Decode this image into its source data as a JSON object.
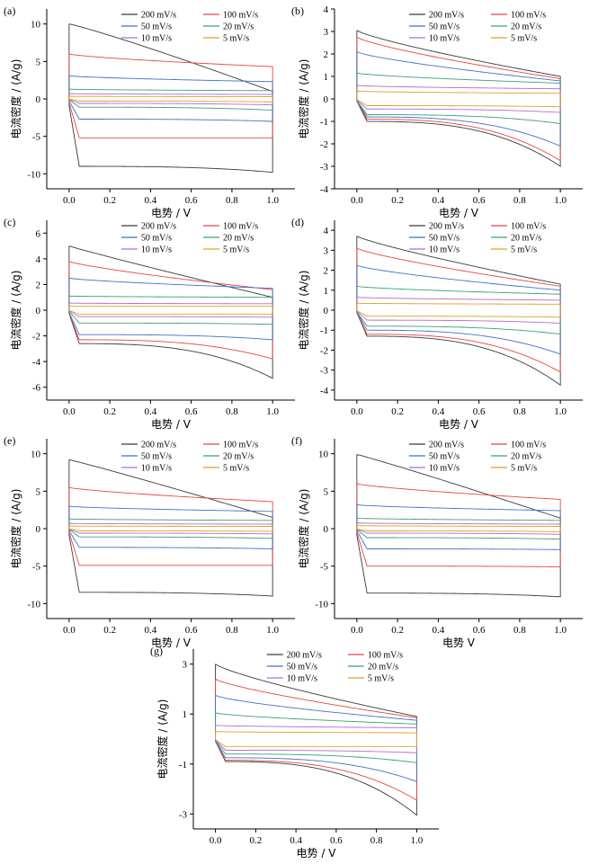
{
  "figure": {
    "legend_labels": [
      "200 mV/s",
      "100 mV/s",
      "50 mV/s",
      "20 mV/s",
      "10 mV/s",
      "5 mV/s"
    ],
    "colors": {
      "200 mV/s": "#3a3a3a",
      "100 mV/s": "#e8463c",
      "50 mV/s": "#3f72c8",
      "20 mV/s": "#3aa07a",
      "10 mV/s": "#b46ad6",
      "5 mV/s": "#e0a020"
    },
    "xlabel": "电势 / V",
    "ylabel": "电流密度 / (A/g)"
  },
  "chart_data": [
    {
      "panel": "(a)",
      "type": "line",
      "xlabel": "电势 / V",
      "ylabel": "电流密度 / (A/g)",
      "xlim": [
        0,
        1
      ],
      "ylim": [
        -12,
        12
      ],
      "xticks": [
        0.0,
        0.2,
        0.4,
        0.6,
        0.8,
        1.0
      ],
      "yticks": [
        10,
        5,
        0,
        -5,
        -10
      ],
      "series": [
        {
          "name": "200 mV/s",
          "y0": 10,
          "y1": -9.8,
          "a": -9,
          "b": 1.0,
          "shape": 1.2
        },
        {
          "name": "100 mV/s",
          "y0": 6,
          "y1": -5.2,
          "a": -5.2,
          "b": 4.3,
          "shape": 0.45
        },
        {
          "name": "50 mV/s",
          "y0": 3.1,
          "y1": -3,
          "a": -2.7,
          "b": 2.3,
          "shape": 0.3
        },
        {
          "name": "20 mV/s",
          "y0": 1.3,
          "y1": -1.5,
          "a": -1.1,
          "b": 1.1,
          "shape": 0.2
        },
        {
          "name": "10 mV/s",
          "y0": 0.7,
          "y1": -0.8,
          "a": -0.6,
          "b": 0.6,
          "shape": 0.15
        },
        {
          "name": "5 mV/s",
          "y0": 0.35,
          "y1": -0.4,
          "a": -0.3,
          "b": 0.3,
          "shape": 0.1
        }
      ]
    },
    {
      "panel": "(b)",
      "type": "line",
      "xlabel": "电势 / V",
      "ylabel": "电流密度 / (A/g)",
      "xlim": [
        0,
        1
      ],
      "ylim": [
        -4,
        4
      ],
      "xticks": [
        0.0,
        0.2,
        0.4,
        0.6,
        0.8,
        1.0
      ],
      "yticks": [
        4,
        3,
        2,
        1,
        0,
        -1,
        -2,
        -3,
        -4
      ],
      "series": [
        {
          "name": "200 mV/s",
          "y0": 3.05,
          "y1": -3,
          "a": -1.0,
          "b": 1.0,
          "shape": 0.6
        },
        {
          "name": "100 mV/s",
          "y0": 2.75,
          "y1": -2.75,
          "a": -0.9,
          "b": 0.9,
          "shape": 0.55
        },
        {
          "name": "50 mV/s",
          "y0": 2.1,
          "y1": -2.1,
          "a": -0.8,
          "b": 0.8,
          "shape": 0.5
        },
        {
          "name": "20 mV/s",
          "y0": 1.15,
          "y1": -1.1,
          "a": -0.7,
          "b": 0.7,
          "shape": 0.4
        },
        {
          "name": "10 mV/s",
          "y0": 0.6,
          "y1": -0.6,
          "a": -0.45,
          "b": 0.45,
          "shape": 0.2
        },
        {
          "name": "5 mV/s",
          "y0": 0.35,
          "y1": -0.35,
          "a": -0.3,
          "b": 0.25,
          "shape": 0.1
        }
      ]
    },
    {
      "panel": "(c)",
      "type": "line",
      "xlabel": "电势 / V",
      "ylabel": "电流密度 / (A/g)",
      "xlim": [
        0,
        1
      ],
      "ylim": [
        -7,
        7
      ],
      "xticks": [
        0.0,
        0.2,
        0.4,
        0.6,
        0.8,
        1.0
      ],
      "yticks": [
        6,
        4,
        2,
        0,
        -2,
        -4,
        -6
      ],
      "series": [
        {
          "name": "200 mV/s",
          "y0": 5,
          "y1": -5.3,
          "a": -2.6,
          "b": 1.0,
          "shape": 0.9
        },
        {
          "name": "100 mV/s",
          "y0": 3.8,
          "y1": -3.8,
          "a": -2.3,
          "b": 1.6,
          "shape": 0.6
        },
        {
          "name": "50 mV/s",
          "y0": 2.5,
          "y1": -2.3,
          "a": -1.9,
          "b": 1.7,
          "shape": 0.45
        },
        {
          "name": "20 mV/s",
          "y0": 1.1,
          "y1": -1.1,
          "a": -1.0,
          "b": 1.0,
          "shape": 0.3
        },
        {
          "name": "10 mV/s",
          "y0": 0.55,
          "y1": -0.55,
          "a": -0.5,
          "b": 0.5,
          "shape": 0.2
        },
        {
          "name": "5 mV/s",
          "y0": 0.3,
          "y1": -0.3,
          "a": -0.3,
          "b": 0.3,
          "shape": 0.1
        }
      ]
    },
    {
      "panel": "(d)",
      "type": "line",
      "xlabel": "电势 / V",
      "ylabel": "电流密度 / (A/g)",
      "xlim": [
        0,
        1
      ],
      "ylim": [
        -4.5,
        4.5
      ],
      "xticks": [
        0.0,
        0.2,
        0.4,
        0.6,
        0.8,
        1.0
      ],
      "yticks": [
        4,
        3,
        2,
        1,
        0,
        -1,
        -2,
        -3,
        -4
      ],
      "series": [
        {
          "name": "200 mV/s",
          "y0": 3.7,
          "y1": -3.75,
          "a": -1.3,
          "b": 1.3,
          "shape": 0.7
        },
        {
          "name": "100 mV/s",
          "y0": 3.1,
          "y1": -3.1,
          "a": -1.2,
          "b": 1.2,
          "shape": 0.6
        },
        {
          "name": "50 mV/s",
          "y0": 2.25,
          "y1": -2.2,
          "a": -1.0,
          "b": 1.0,
          "shape": 0.5
        },
        {
          "name": "20 mV/s",
          "y0": 1.2,
          "y1": -1.2,
          "a": -0.8,
          "b": 0.8,
          "shape": 0.35
        },
        {
          "name": "10 mV/s",
          "y0": 0.65,
          "y1": -0.65,
          "a": -0.5,
          "b": 0.5,
          "shape": 0.2
        },
        {
          "name": "5 mV/s",
          "y0": 0.35,
          "y1": -0.35,
          "a": -0.3,
          "b": 0.3,
          "shape": 0.1
        }
      ]
    },
    {
      "panel": "(e)",
      "type": "line",
      "xlabel": "电势 / V",
      "ylabel": "电流密度 / (A/g)",
      "xlim": [
        0,
        1
      ],
      "ylim": [
        -12,
        12
      ],
      "xticks": [
        0.0,
        0.2,
        0.4,
        0.6,
        0.8,
        1.0
      ],
      "yticks": [
        10,
        5,
        0,
        -5,
        -10
      ],
      "series": [
        {
          "name": "200 mV/s",
          "y0": 9.2,
          "y1": -9.0,
          "a": -8.5,
          "b": 1.5,
          "shape": 1.1
        },
        {
          "name": "100 mV/s",
          "y0": 5.5,
          "y1": -4.9,
          "a": -4.9,
          "b": 3.6,
          "shape": 0.5
        },
        {
          "name": "50 mV/s",
          "y0": 3,
          "y1": -2.7,
          "a": -2.5,
          "b": 2.3,
          "shape": 0.3
        },
        {
          "name": "20 mV/s",
          "y0": 1.3,
          "y1": -1.3,
          "a": -1.1,
          "b": 1.1,
          "shape": 0.2
        },
        {
          "name": "10 mV/s",
          "y0": 0.7,
          "y1": -0.7,
          "a": -0.6,
          "b": 0.6,
          "shape": 0.15
        },
        {
          "name": "5 mV/s",
          "y0": 0.35,
          "y1": -0.35,
          "a": -0.3,
          "b": 0.3,
          "shape": 0.1
        }
      ]
    },
    {
      "panel": "(f)",
      "type": "line",
      "xlabel": "电势   V",
      "ylabel": "电流密度 / (A/g)",
      "xlim": [
        0,
        1
      ],
      "ylim": [
        -12,
        12
      ],
      "xticks": [
        0.0,
        0.2,
        0.4,
        0.6,
        0.8,
        1.0
      ],
      "yticks": [
        10,
        5,
        0,
        -5,
        -10
      ],
      "series": [
        {
          "name": "200 mV/s",
          "y0": 9.9,
          "y1": -9.1,
          "a": -8.6,
          "b": 1.4,
          "shape": 1.1
        },
        {
          "name": "100 mV/s",
          "y0": 6,
          "y1": -5.1,
          "a": -5.0,
          "b": 3.9,
          "shape": 0.5
        },
        {
          "name": "50 mV/s",
          "y0": 3.2,
          "y1": -2.8,
          "a": -2.7,
          "b": 2.4,
          "shape": 0.3
        },
        {
          "name": "20 mV/s",
          "y0": 1.4,
          "y1": -1.4,
          "a": -1.2,
          "b": 1.1,
          "shape": 0.2
        },
        {
          "name": "10 mV/s",
          "y0": 0.75,
          "y1": -0.75,
          "a": -0.6,
          "b": 0.6,
          "shape": 0.15
        },
        {
          "name": "5 mV/s",
          "y0": 0.4,
          "y1": -0.4,
          "a": -0.3,
          "b": 0.3,
          "shape": 0.1
        }
      ]
    },
    {
      "panel": "(g)",
      "type": "line",
      "xlabel": "电势 / V",
      "ylabel": "电流密度 / (A/g)",
      "xlim": [
        0,
        1
      ],
      "ylim": [
        -3.6,
        3.6
      ],
      "xticks": [
        0.0,
        0.2,
        0.4,
        0.6,
        0.8,
        1.0
      ],
      "yticks": [
        3,
        1,
        -1,
        -3
      ],
      "series": [
        {
          "name": "200 mV/s",
          "y0": 3.0,
          "y1": -3.05,
          "a": -0.9,
          "b": 0.9,
          "shape": 0.6
        },
        {
          "name": "100 mV/s",
          "y0": 2.4,
          "y1": -2.45,
          "a": -0.85,
          "b": 0.85,
          "shape": 0.55
        },
        {
          "name": "50 mV/s",
          "y0": 1.75,
          "y1": -1.7,
          "a": -0.75,
          "b": 0.75,
          "shape": 0.45
        },
        {
          "name": "20 mV/s",
          "y0": 1.05,
          "y1": -0.95,
          "a": -0.6,
          "b": 0.6,
          "shape": 0.35
        },
        {
          "name": "10 mV/s",
          "y0": 0.55,
          "y1": -0.55,
          "a": -0.45,
          "b": 0.45,
          "shape": 0.2
        },
        {
          "name": "5 mV/s",
          "y0": 0.3,
          "y1": -0.3,
          "a": -0.3,
          "b": 0.25,
          "shape": 0.1
        }
      ]
    }
  ]
}
